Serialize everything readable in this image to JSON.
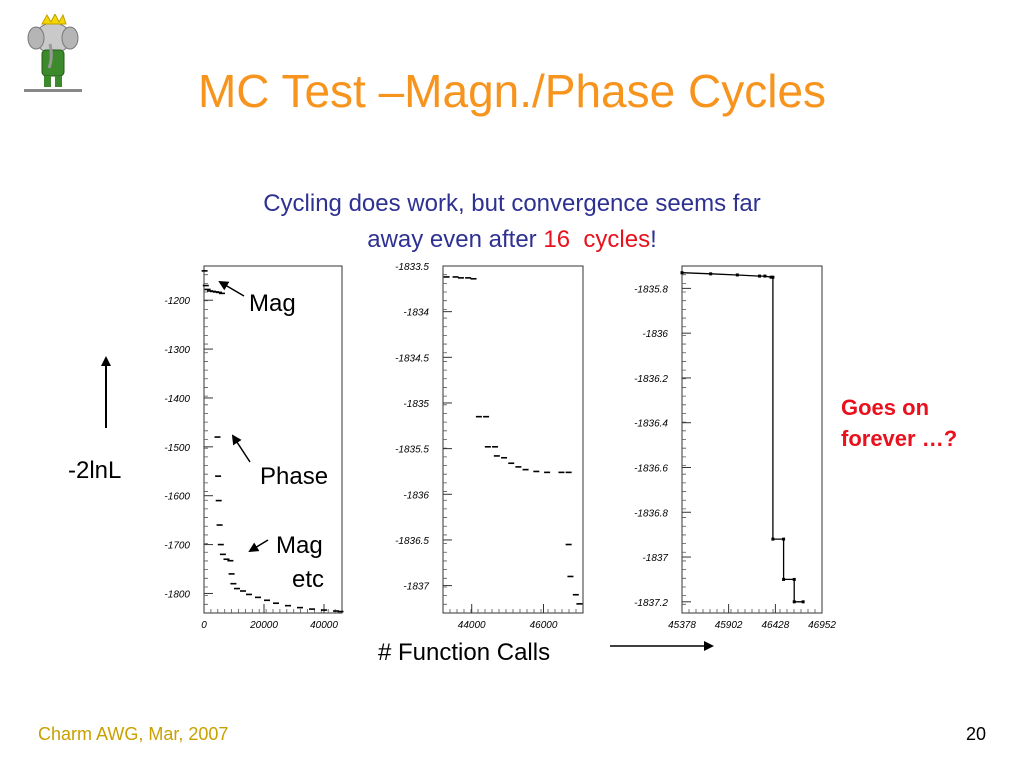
{
  "slide": {
    "title": "MC Test –Magn./Phase Cycles",
    "subtitle_line1": "Cycling does work, but convergence seems far",
    "subtitle_line2_a": "away even after ",
    "subtitle_line2_num": "16",
    "subtitle_line2_gap": " ",
    "subtitle_line2_cycles": "cycles",
    "subtitle_line2_end": "!",
    "axis_label": "-2lnL",
    "x_axis_label": "# Function Calls",
    "annotation_mag": "Mag",
    "annotation_phase": "Phase",
    "annotation_mag2": "Mag",
    "annotation_etc": "etc",
    "goes_on_1": "Goes on",
    "goes_on_2": "forever …?",
    "footer": "Charm AWG, Mar, 2007",
    "page_number": "20"
  },
  "colors": {
    "title": "#f7941d",
    "subtitle": "#2e3192",
    "highlight": "#e8111d",
    "footer": "#c8a000"
  },
  "icons": {
    "logo": "babar-elephant-logo"
  },
  "chart_data": [
    {
      "type": "scatter",
      "xlim": [
        0,
        46000
      ],
      "ylim": [
        -1840,
        -1130
      ],
      "x_ticks": [
        {
          "v": 0,
          "label": "0"
        },
        {
          "v": 20000,
          "label": "20000"
        },
        {
          "v": 40000,
          "label": "40000"
        }
      ],
      "y_ticks": [
        {
          "v": -1200,
          "label": "-1200"
        },
        {
          "v": -1300,
          "label": "-1300"
        },
        {
          "v": -1400,
          "label": "-1400"
        },
        {
          "v": -1500,
          "label": "-1500"
        },
        {
          "v": -1600,
          "label": "-1600"
        },
        {
          "v": -1700,
          "label": "-1700"
        },
        {
          "v": -1800,
          "label": "-1800"
        }
      ],
      "points": [
        [
          200,
          -1140
        ],
        [
          600,
          -1170
        ],
        [
          1200,
          -1178
        ],
        [
          2000,
          -1181
        ],
        [
          3000,
          -1182
        ],
        [
          4000,
          -1183
        ],
        [
          5000,
          -1184
        ],
        [
          6000,
          -1186
        ],
        [
          4500,
          -1480
        ],
        [
          4700,
          -1560
        ],
        [
          4900,
          -1610
        ],
        [
          5200,
          -1660
        ],
        [
          5600,
          -1700
        ],
        [
          6300,
          -1720
        ],
        [
          7500,
          -1730
        ],
        [
          8800,
          -1733
        ],
        [
          9200,
          -1760
        ],
        [
          9800,
          -1780
        ],
        [
          11000,
          -1790
        ],
        [
          13000,
          -1795
        ],
        [
          15000,
          -1802
        ],
        [
          18000,
          -1808
        ],
        [
          21000,
          -1814
        ],
        [
          24000,
          -1820
        ],
        [
          28000,
          -1825
        ],
        [
          32000,
          -1829
        ],
        [
          36000,
          -1832
        ],
        [
          40000,
          -1834
        ],
        [
          44000,
          -1836
        ],
        [
          45500,
          -1837
        ]
      ]
    },
    {
      "type": "scatter",
      "xlim": [
        43200,
        47100
      ],
      "ylim": [
        -1837.3,
        -1833.5
      ],
      "x_ticks": [
        {
          "v": 44000,
          "label": "44000"
        },
        {
          "v": 46000,
          "label": "46000"
        }
      ],
      "y_ticks": [
        {
          "v": -1833.5,
          "label": "-1833.5"
        },
        {
          "v": -1834,
          "label": "-1834"
        },
        {
          "v": -1834.5,
          "label": "-1834.5"
        },
        {
          "v": -1835,
          "label": "-1835"
        },
        {
          "v": -1835.5,
          "label": "-1835.5"
        },
        {
          "v": -1836,
          "label": "-1836"
        },
        {
          "v": -1836.5,
          "label": "-1836.5"
        },
        {
          "v": -1837,
          "label": "-1837"
        }
      ],
      "points": [
        [
          43300,
          -1833.62
        ],
        [
          43550,
          -1833.62
        ],
        [
          43700,
          -1833.63
        ],
        [
          43900,
          -1833.63
        ],
        [
          44050,
          -1833.64
        ],
        [
          44200,
          -1835.15
        ],
        [
          44400,
          -1835.15
        ],
        [
          44450,
          -1835.48
        ],
        [
          44650,
          -1835.48
        ],
        [
          44700,
          -1835.58
        ],
        [
          44900,
          -1835.6
        ],
        [
          45100,
          -1835.66
        ],
        [
          45300,
          -1835.7
        ],
        [
          45500,
          -1835.73
        ],
        [
          45800,
          -1835.75
        ],
        [
          46100,
          -1835.76
        ],
        [
          46500,
          -1835.76
        ],
        [
          46700,
          -1835.76
        ],
        [
          46700,
          -1836.55
        ],
        [
          46750,
          -1836.9
        ],
        [
          46900,
          -1837.1
        ],
        [
          47000,
          -1837.2
        ]
      ]
    },
    {
      "type": "line",
      "xlim": [
        45378,
        46952
      ],
      "ylim": [
        -1837.25,
        -1835.7
      ],
      "x_ticks": [
        {
          "v": 45378,
          "label": "45378"
        },
        {
          "v": 45902,
          "label": "45902"
        },
        {
          "v": 46428,
          "label": "46428"
        },
        {
          "v": 46952,
          "label": "46952"
        }
      ],
      "y_ticks": [
        {
          "v": -1835.8,
          "label": "-1835.8"
        },
        {
          "v": -1836,
          "label": "-1836"
        },
        {
          "v": -1836.2,
          "label": "-1836.2"
        },
        {
          "v": -1836.4,
          "label": "-1836.4"
        },
        {
          "v": -1836.6,
          "label": "-1836.6"
        },
        {
          "v": -1836.8,
          "label": "-1836.8"
        },
        {
          "v": -1837,
          "label": "-1837"
        },
        {
          "v": -1837.2,
          "label": "-1837.2"
        }
      ],
      "points": [
        [
          45378,
          -1835.73
        ],
        [
          45700,
          -1835.735
        ],
        [
          46000,
          -1835.74
        ],
        [
          46250,
          -1835.745
        ],
        [
          46310,
          -1835.745
        ],
        [
          46380,
          -1835.75
        ],
        [
          46400,
          -1835.75
        ],
        [
          46400,
          -1836.92
        ],
        [
          46520,
          -1836.92
        ],
        [
          46520,
          -1837.1
        ],
        [
          46640,
          -1837.1
        ],
        [
          46640,
          -1837.2
        ],
        [
          46740,
          -1837.2
        ]
      ]
    }
  ]
}
